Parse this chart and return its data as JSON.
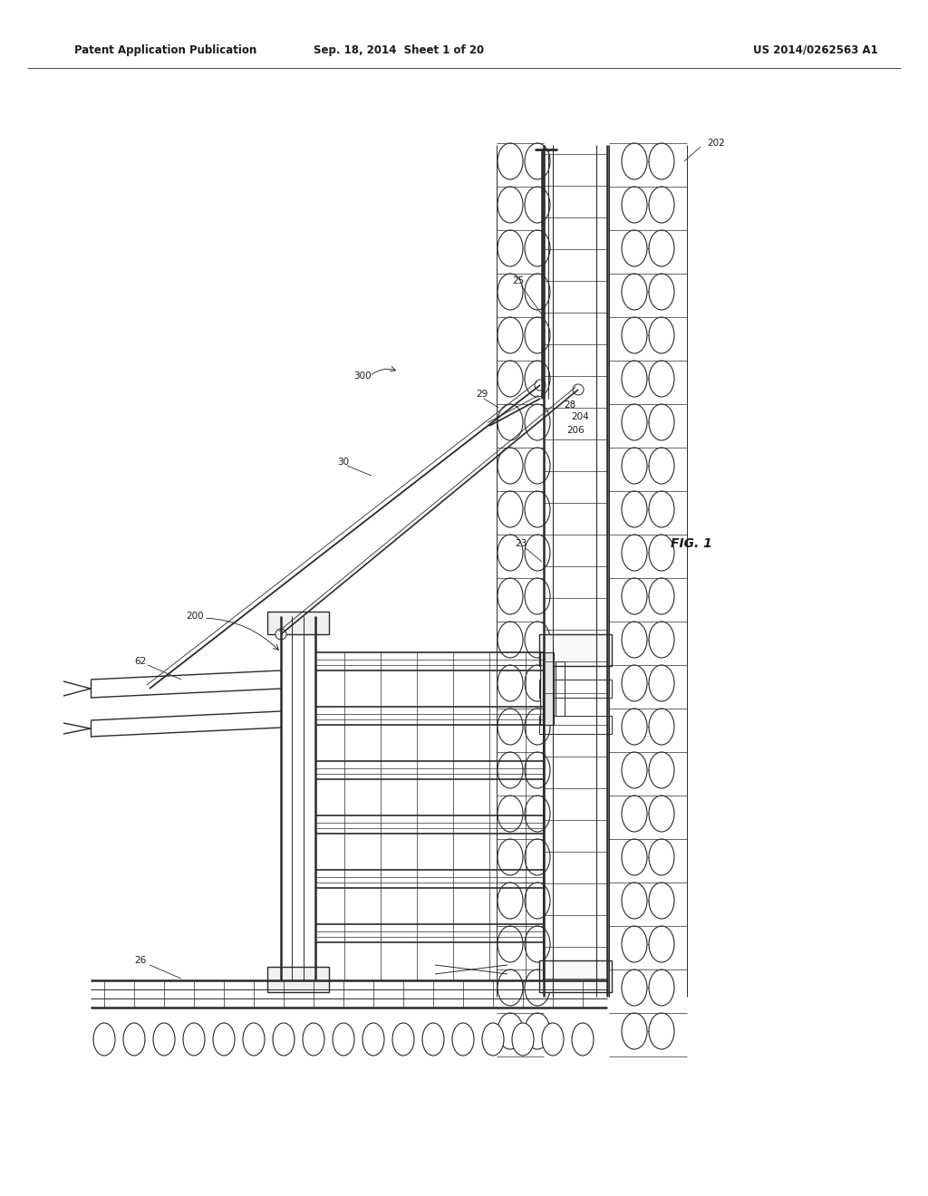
{
  "title_left": "Patent Application Publication",
  "title_center": "Sep. 18, 2014  Sheet 1 of 20",
  "title_right": "US 2014/0262563 A1",
  "fig_label": "FIG. 1",
  "bg_color": "#ffffff",
  "line_color": "#2a2a2a",
  "text_color": "#1a1a1a",
  "header_fontsize": 8.5,
  "label_fontsize": 7.5,
  "fig_label_fontsize": 10
}
